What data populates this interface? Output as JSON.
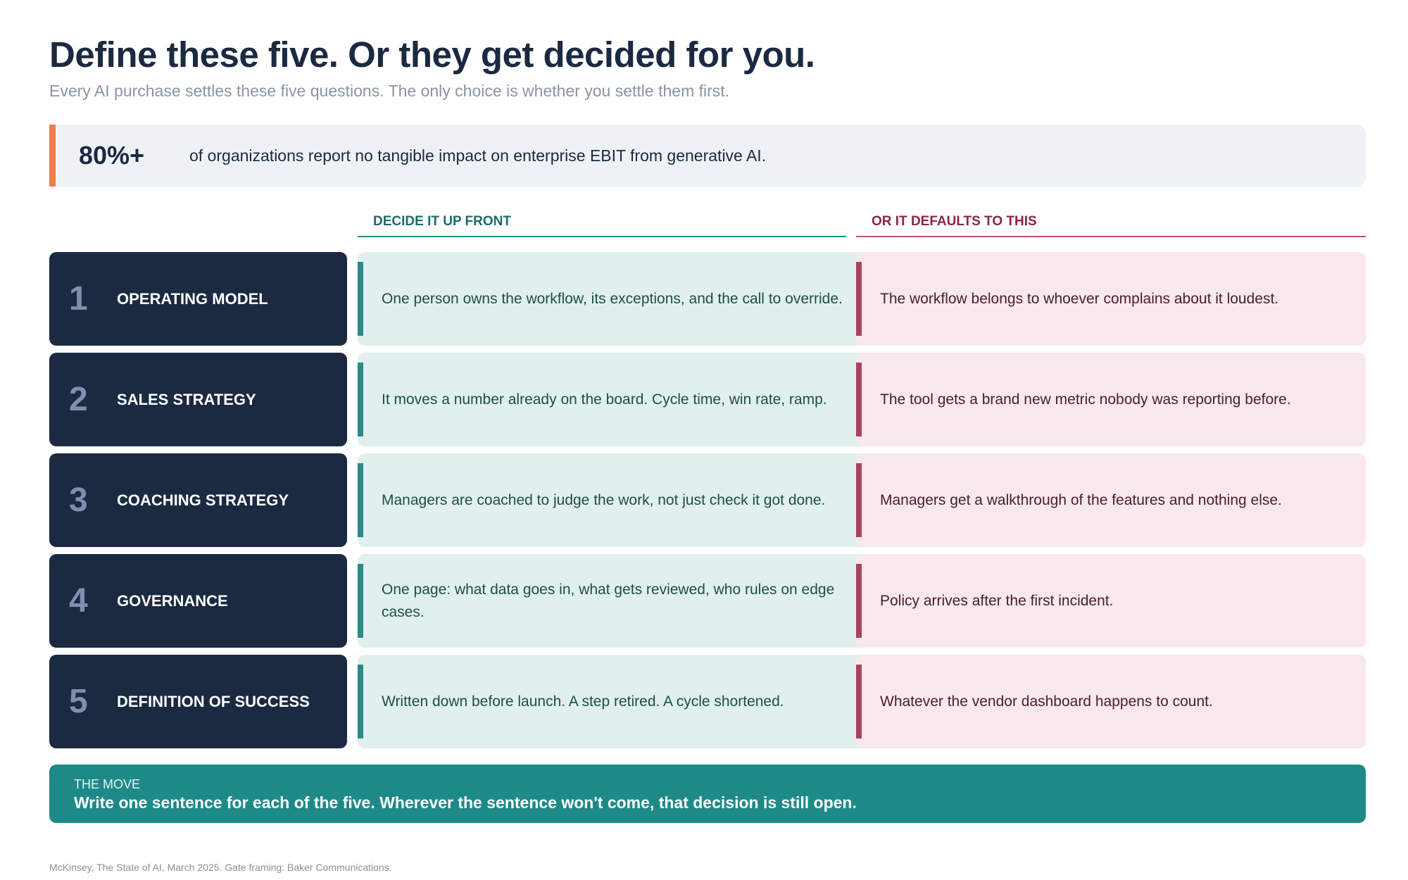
{
  "header": {
    "title": "Define these five. Or they get decided for you.",
    "subtitle": "Every AI purchase settles these five questions. The only choice is whether you settle them first."
  },
  "stat": {
    "value": "80%+",
    "text": "of organizations report no tangible impact on enterprise EBIT from generative AI."
  },
  "columns": {
    "good": "DECIDE IT UP FRONT",
    "bad": "OR IT DEFAULTS TO THIS"
  },
  "rows": [
    {
      "number": "1",
      "label": "OPERATING MODEL",
      "decide": "One person owns the workflow, its exceptions, and the call to override.",
      "default": "The workflow belongs to whoever complains about it loudest."
    },
    {
      "number": "2",
      "label": "SALES STRATEGY",
      "decide": "It moves a number already on the board. Cycle time, win rate, ramp.",
      "default": "The tool gets a brand new metric nobody was reporting before."
    },
    {
      "number": "3",
      "label": "COACHING STRATEGY",
      "decide": "Managers are coached to judge the work, not just check it got done.",
      "default": "Managers get a walkthrough of the features and nothing else."
    },
    {
      "number": "4",
      "label": "GOVERNANCE",
      "decide": "One page: what data goes in, what gets reviewed, who rules on edge cases.",
      "default": "Policy arrives after the first incident."
    },
    {
      "number": "5",
      "label": "DEFINITION OF SUCCESS",
      "decide": "Written down before launch. A step retired. A cycle shortened.",
      "default": "Whatever the vendor dashboard happens to count."
    }
  ],
  "move": {
    "label": "THE MOVE",
    "text": "Write one sentence for each of the five. Wherever the sentence won't come, that decision is still open."
  },
  "source": "McKinsey, The State of AI, March 2025. Gate framing: Baker Communications.",
  "colors": {
    "navy": "#1b2a41",
    "accent_orange": "#ee7d45",
    "teal": "#1e8a88",
    "crimson": "#a84460"
  }
}
